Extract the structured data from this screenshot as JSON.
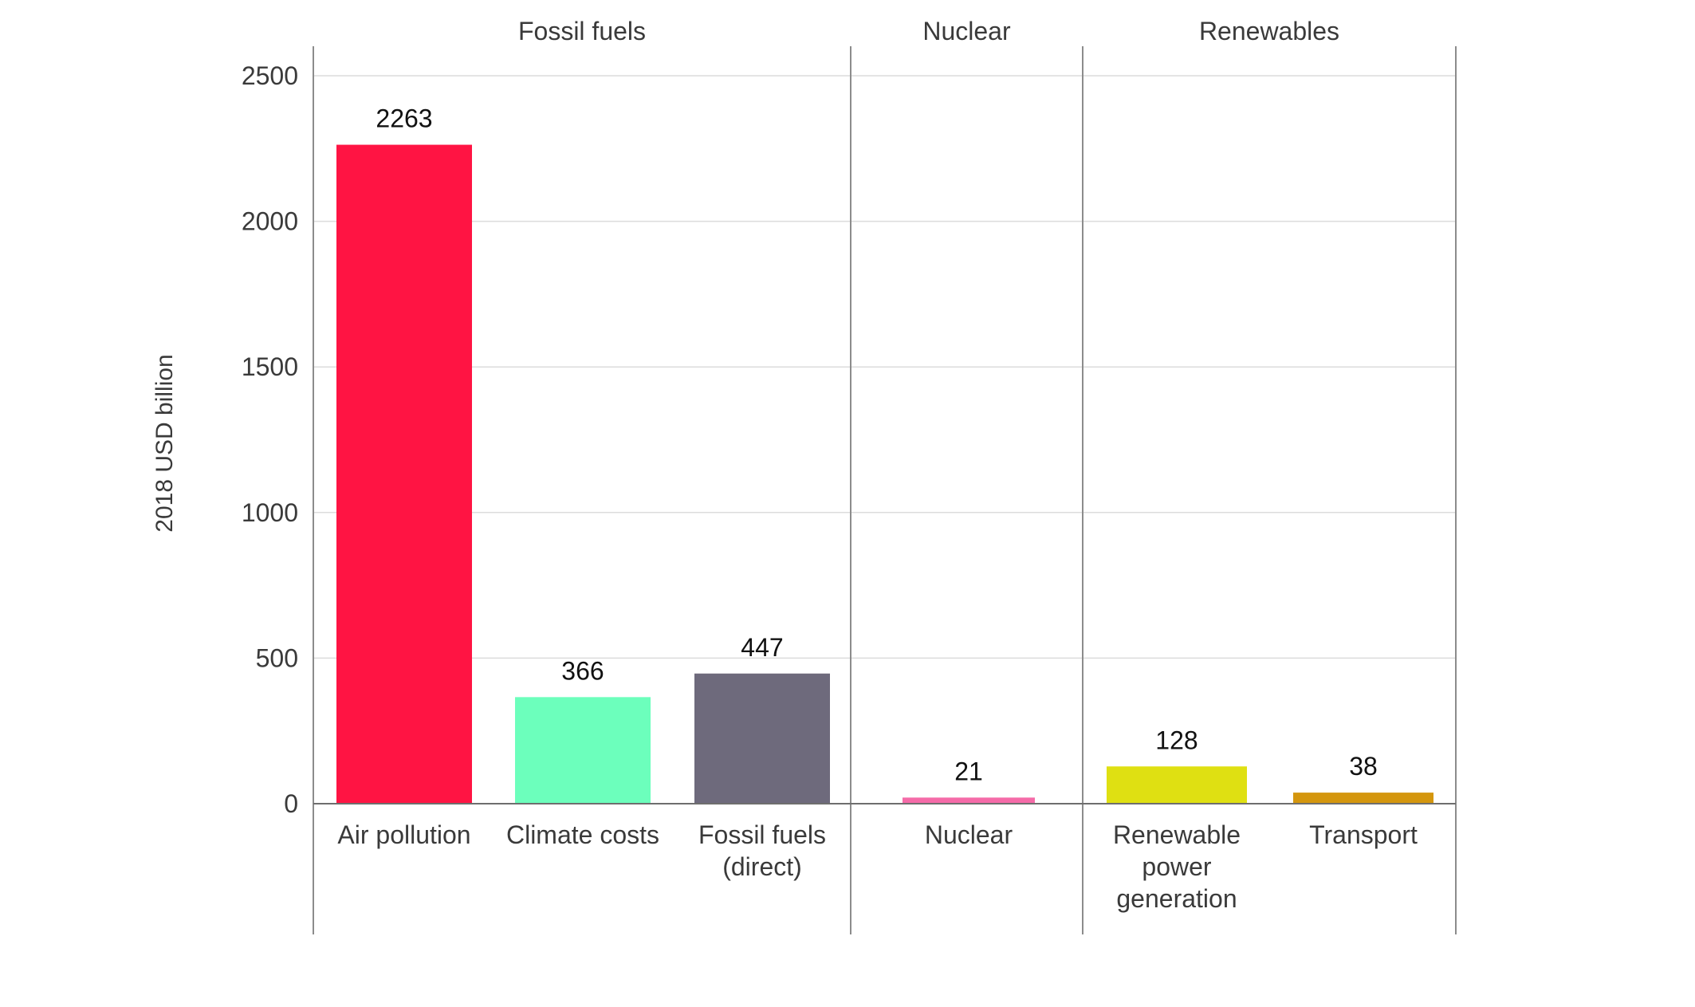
{
  "chart_data": {
    "type": "bar",
    "ylabel": "2018 USD billion",
    "ylim": [
      0,
      2500
    ],
    "yticks": [
      0,
      500,
      1000,
      1500,
      2000,
      2500
    ],
    "grid": true,
    "groups": [
      {
        "name": "Fossil fuels",
        "bars": [
          {
            "label": [
              "Air pollution"
            ],
            "value": 2263,
            "color": "#ff1443"
          },
          {
            "label": [
              "Climate costs"
            ],
            "value": 366,
            "color": "#6cffbc"
          },
          {
            "label": [
              "Fossil fuels",
              "(direct)"
            ],
            "value": 447,
            "color": "#6e6a7c"
          }
        ]
      },
      {
        "name": "Nuclear",
        "bars": [
          {
            "label": [
              "Nuclear"
            ],
            "value": 21,
            "color": "#f56ba8"
          }
        ]
      },
      {
        "name": "Renewables",
        "bars": [
          {
            "label": [
              "Renewable",
              "power",
              "generation"
            ],
            "value": 128,
            "color": "#dfe012"
          },
          {
            "label": [
              "Transport"
            ],
            "value": 38,
            "color": "#d4960e"
          }
        ]
      }
    ]
  }
}
